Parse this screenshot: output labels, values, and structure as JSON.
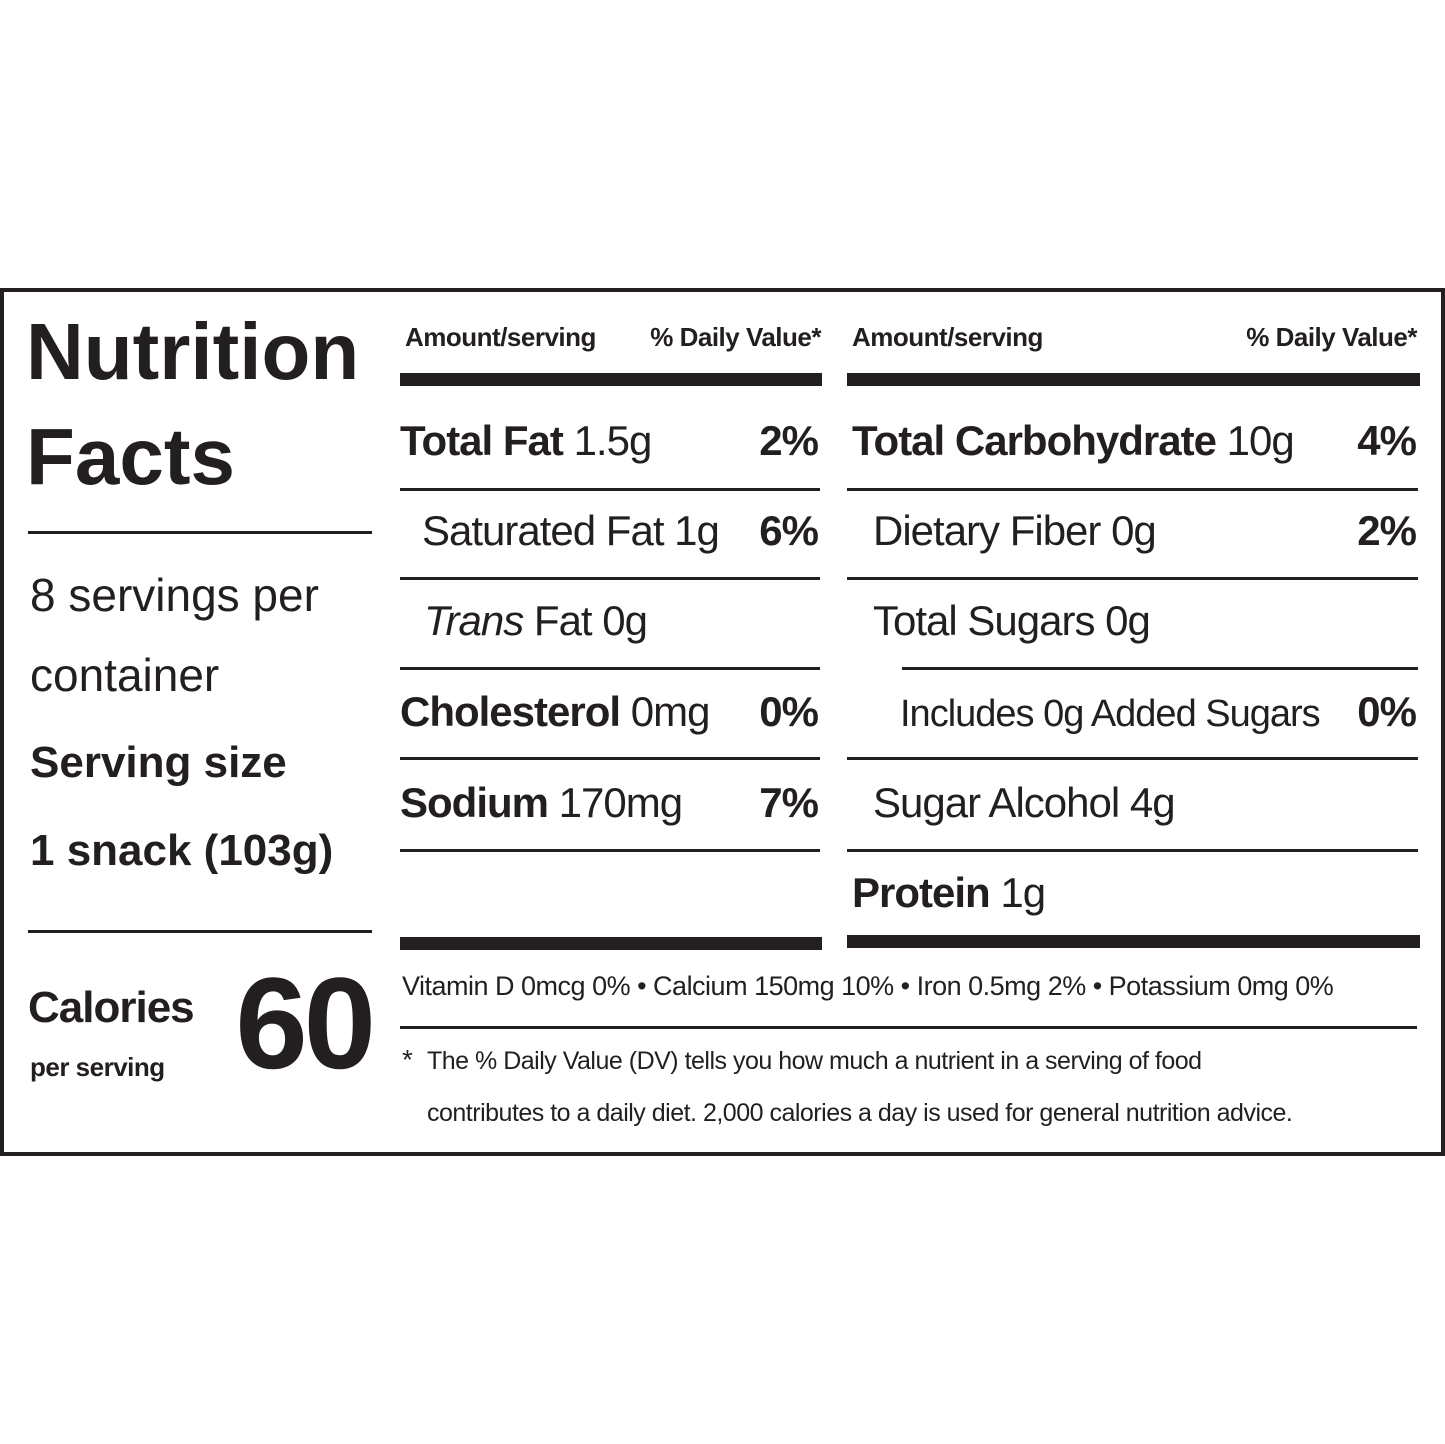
{
  "title_line1": "Nutrition",
  "title_line2": "Facts",
  "servings_line1": "8 servings per",
  "servings_line2": "container",
  "serving_size_label": "Serving size",
  "serving_size_value": "1 snack (103g)",
  "calories_label": "Calories",
  "calories_sub": "per serving",
  "calories_value": "60",
  "header": {
    "amount": "Amount/serving",
    "dv": "% Daily Value*"
  },
  "left_rows": [
    {
      "name": "Total Fat",
      "amount": "1.5g",
      "dv": "2%"
    },
    {
      "name": "Saturated Fat",
      "amount": "1g",
      "dv": "6%"
    },
    {
      "name": "Trans",
      "amount": "Fat 0g",
      "dv": ""
    },
    {
      "name": "Cholesterol",
      "amount": "0mg",
      "dv": "0%"
    },
    {
      "name": "Sodium",
      "amount": "170mg",
      "dv": "7%"
    }
  ],
  "right_rows": [
    {
      "name": "Total Carbohydrate",
      "amount": "10g",
      "dv": "4%"
    },
    {
      "name": "Dietary Fiber",
      "amount": "0g",
      "dv": "2%"
    },
    {
      "name": "Total Sugars",
      "amount": "0g",
      "dv": ""
    },
    {
      "name": "Includes 0g Added Sugars",
      "amount": "",
      "dv": "0%"
    },
    {
      "name": "Sugar Alcohol",
      "amount": "4g",
      "dv": ""
    },
    {
      "name": "Protein",
      "amount": "1g",
      "dv": ""
    }
  ],
  "micronutrients": "Vitamin D 0mcg 0% • Calcium 150mg 10% • Iron 0.5mg 2% • Potassium 0mg 0%",
  "footnote_star": "*",
  "footnote_line1": "The % Daily Value (DV) tells you how much a nutrient in a serving of food",
  "footnote_line2": "contributes to a daily diet. 2,000 calories a day is used for general nutrition advice."
}
